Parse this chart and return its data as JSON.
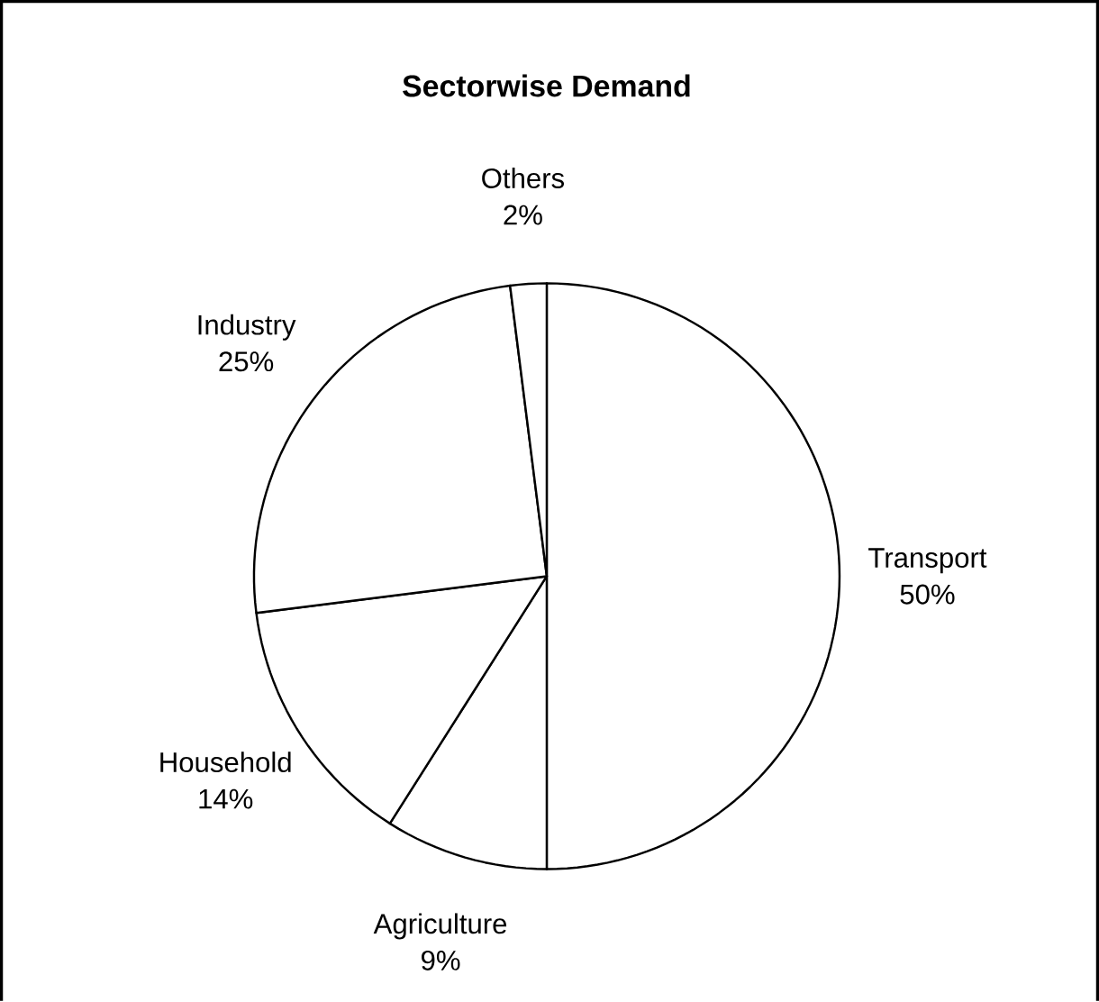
{
  "chart_data": {
    "type": "pie",
    "title": "Sectorwise Demand",
    "categories": [
      "Transport",
      "Agriculture",
      "Household",
      "Industry",
      "Others"
    ],
    "values": [
      50,
      9,
      14,
      25,
      2
    ],
    "value_labels": [
      "50%",
      "9%",
      "14%",
      "25%",
      "2%"
    ],
    "colors": [
      "#ffffff",
      "#ffffff",
      "#ffffff",
      "#ffffff",
      "#ffffff"
    ]
  }
}
